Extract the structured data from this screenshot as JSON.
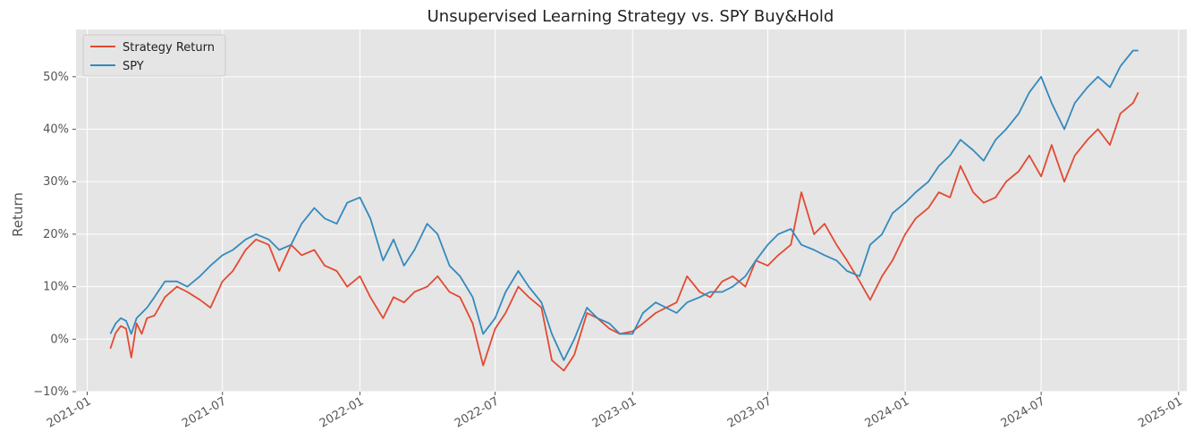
{
  "chart_data": {
    "type": "line",
    "title": "Unsupervised Learning Strategy vs. SPY Buy&Hold",
    "xlabel": "",
    "ylabel": "Return",
    "xlim": [
      "2020-12-17",
      "2025-01-12"
    ],
    "ylim": [
      -0.1,
      0.59
    ],
    "x_ticks": [
      "2021-01-01",
      "2021-07-01",
      "2022-01-01",
      "2022-07-01",
      "2023-01-01",
      "2023-07-01",
      "2024-01-01",
      "2024-07-01",
      "2025-01-01"
    ],
    "x_tick_labels": [
      "2021-01",
      "2021-07",
      "2022-01",
      "2022-07",
      "2023-01",
      "2023-07",
      "2024-01",
      "2024-07",
      "2025-01"
    ],
    "y_ticks": [
      -0.1,
      0.0,
      0.1,
      0.2,
      0.3,
      0.4,
      0.5
    ],
    "y_tick_labels": [
      "−10%",
      "0%",
      "10%",
      "20%",
      "30%",
      "40%",
      "50%"
    ],
    "grid": true,
    "legend_position": "top-left",
    "colors": {
      "background": "#e5e5e5",
      "grid": "#ffffff",
      "strategy": "#e24a33",
      "spy": "#348abd"
    },
    "series": [
      {
        "name": "Strategy Return",
        "color": "#e24a33",
        "x": [
          "2021-02-01",
          "2021-02-08",
          "2021-02-15",
          "2021-02-22",
          "2021-03-01",
          "2021-03-08",
          "2021-03-15",
          "2021-03-22",
          "2021-04-01",
          "2021-04-15",
          "2021-05-01",
          "2021-05-15",
          "2021-06-01",
          "2021-06-15",
          "2021-07-01",
          "2021-07-15",
          "2021-08-01",
          "2021-08-15",
          "2021-09-01",
          "2021-09-15",
          "2021-10-01",
          "2021-10-15",
          "2021-11-01",
          "2021-11-15",
          "2021-12-01",
          "2021-12-15",
          "2022-01-01",
          "2022-01-15",
          "2022-02-01",
          "2022-02-15",
          "2022-03-01",
          "2022-03-15",
          "2022-04-01",
          "2022-04-15",
          "2022-05-01",
          "2022-05-15",
          "2022-06-01",
          "2022-06-15",
          "2022-07-01",
          "2022-07-15",
          "2022-08-01",
          "2022-08-15",
          "2022-09-01",
          "2022-09-15",
          "2022-10-01",
          "2022-10-15",
          "2022-11-01",
          "2022-11-15",
          "2022-12-01",
          "2022-12-15",
          "2023-01-01",
          "2023-01-15",
          "2023-02-01",
          "2023-02-15",
          "2023-03-01",
          "2023-03-15",
          "2023-04-01",
          "2023-04-15",
          "2023-05-01",
          "2023-05-15",
          "2023-06-01",
          "2023-06-15",
          "2023-07-01",
          "2023-07-15",
          "2023-08-01",
          "2023-08-15",
          "2023-09-01",
          "2023-09-15",
          "2023-10-01",
          "2023-10-15",
          "2023-11-01",
          "2023-11-15",
          "2023-12-01",
          "2023-12-15",
          "2024-01-01",
          "2024-01-15",
          "2024-02-01",
          "2024-02-15",
          "2024-03-01",
          "2024-03-15",
          "2024-04-01",
          "2024-04-15",
          "2024-05-01",
          "2024-05-15",
          "2024-06-01",
          "2024-06-15",
          "2024-07-01",
          "2024-07-15",
          "2024-08-01",
          "2024-08-15",
          "2024-09-01",
          "2024-09-15",
          "2024-10-01",
          "2024-10-15",
          "2024-11-01",
          "2024-11-08"
        ],
        "y": [
          -0.018,
          0.012,
          0.025,
          0.02,
          -0.035,
          0.03,
          0.01,
          0.04,
          0.045,
          0.08,
          0.1,
          0.09,
          0.075,
          0.06,
          0.11,
          0.13,
          0.17,
          0.19,
          0.18,
          0.13,
          0.18,
          0.16,
          0.17,
          0.14,
          0.13,
          0.1,
          0.12,
          0.08,
          0.04,
          0.08,
          0.07,
          0.09,
          0.1,
          0.12,
          0.09,
          0.08,
          0.03,
          -0.05,
          0.02,
          0.05,
          0.1,
          0.08,
          0.06,
          -0.04,
          -0.06,
          -0.03,
          0.05,
          0.04,
          0.02,
          0.01,
          0.015,
          0.03,
          0.05,
          0.06,
          0.07,
          0.12,
          0.09,
          0.08,
          0.11,
          0.12,
          0.1,
          0.15,
          0.14,
          0.16,
          0.18,
          0.28,
          0.2,
          0.22,
          0.18,
          0.15,
          0.11,
          0.075,
          0.12,
          0.15,
          0.2,
          0.23,
          0.25,
          0.28,
          0.27,
          0.33,
          0.28,
          0.26,
          0.27,
          0.3,
          0.32,
          0.35,
          0.31,
          0.37,
          0.3,
          0.35,
          0.38,
          0.4,
          0.37,
          0.43,
          0.45,
          0.47
        ]
      },
      {
        "name": "SPY",
        "color": "#348abd",
        "x": [
          "2021-02-01",
          "2021-02-08",
          "2021-02-15",
          "2021-02-22",
          "2021-03-01",
          "2021-03-08",
          "2021-03-15",
          "2021-03-22",
          "2021-04-01",
          "2021-04-15",
          "2021-05-01",
          "2021-05-15",
          "2021-06-01",
          "2021-06-15",
          "2021-07-01",
          "2021-07-15",
          "2021-08-01",
          "2021-08-15",
          "2021-09-01",
          "2021-09-15",
          "2021-10-01",
          "2021-10-15",
          "2021-11-01",
          "2021-11-15",
          "2021-12-01",
          "2021-12-15",
          "2022-01-01",
          "2022-01-15",
          "2022-02-01",
          "2022-02-15",
          "2022-03-01",
          "2022-03-15",
          "2022-04-01",
          "2022-04-15",
          "2022-05-01",
          "2022-05-15",
          "2022-06-01",
          "2022-06-15",
          "2022-07-01",
          "2022-07-15",
          "2022-08-01",
          "2022-08-15",
          "2022-09-01",
          "2022-09-15",
          "2022-10-01",
          "2022-10-15",
          "2022-11-01",
          "2022-11-15",
          "2022-12-01",
          "2022-12-15",
          "2023-01-01",
          "2023-01-15",
          "2023-02-01",
          "2023-02-15",
          "2023-03-01",
          "2023-03-15",
          "2023-04-01",
          "2023-04-15",
          "2023-05-01",
          "2023-05-15",
          "2023-06-01",
          "2023-06-15",
          "2023-07-01",
          "2023-07-15",
          "2023-08-01",
          "2023-08-15",
          "2023-09-01",
          "2023-09-15",
          "2023-10-01",
          "2023-10-15",
          "2023-11-01",
          "2023-11-15",
          "2023-12-01",
          "2023-12-15",
          "2024-01-01",
          "2024-01-15",
          "2024-02-01",
          "2024-02-15",
          "2024-03-01",
          "2024-03-15",
          "2024-04-01",
          "2024-04-15",
          "2024-05-01",
          "2024-05-15",
          "2024-06-01",
          "2024-06-15",
          "2024-07-01",
          "2024-07-15",
          "2024-08-01",
          "2024-08-15",
          "2024-09-01",
          "2024-09-15",
          "2024-10-01",
          "2024-10-15",
          "2024-11-01",
          "2024-11-08"
        ],
        "y": [
          0.01,
          0.03,
          0.04,
          0.035,
          0.01,
          0.04,
          0.05,
          0.06,
          0.08,
          0.11,
          0.11,
          0.1,
          0.12,
          0.14,
          0.16,
          0.17,
          0.19,
          0.2,
          0.19,
          0.17,
          0.18,
          0.22,
          0.25,
          0.23,
          0.22,
          0.26,
          0.27,
          0.23,
          0.15,
          0.19,
          0.14,
          0.17,
          0.22,
          0.2,
          0.14,
          0.12,
          0.08,
          0.01,
          0.04,
          0.09,
          0.13,
          0.1,
          0.07,
          0.01,
          -0.04,
          0.0,
          0.06,
          0.04,
          0.03,
          0.01,
          0.01,
          0.05,
          0.07,
          0.06,
          0.05,
          0.07,
          0.08,
          0.09,
          0.09,
          0.1,
          0.12,
          0.15,
          0.18,
          0.2,
          0.21,
          0.18,
          0.17,
          0.16,
          0.15,
          0.13,
          0.12,
          0.18,
          0.2,
          0.24,
          0.26,
          0.28,
          0.3,
          0.33,
          0.35,
          0.38,
          0.36,
          0.34,
          0.38,
          0.4,
          0.43,
          0.47,
          0.5,
          0.45,
          0.4,
          0.45,
          0.48,
          0.5,
          0.48,
          0.52,
          0.55,
          0.55
        ]
      }
    ]
  }
}
